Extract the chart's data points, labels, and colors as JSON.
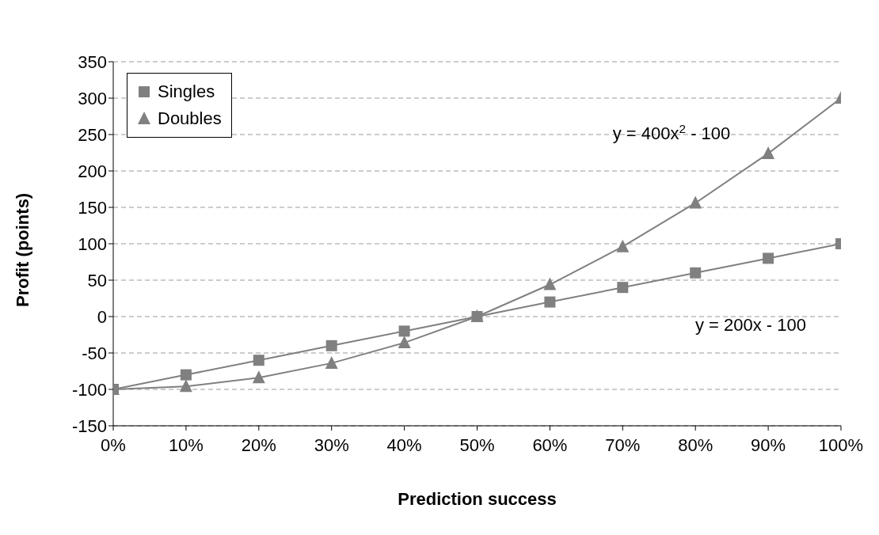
{
  "chart_data": {
    "type": "line",
    "xlabel": "Prediction success",
    "ylabel": "Profit (points)",
    "categories": [
      "0%",
      "10%",
      "20%",
      "30%",
      "40%",
      "50%",
      "60%",
      "70%",
      "80%",
      "90%",
      "100%"
    ],
    "series": [
      {
        "name": "Singles",
        "color": "#808080",
        "marker": "square",
        "values": [
          -100,
          -80,
          -60,
          -40,
          -20,
          0,
          20,
          40,
          60,
          80,
          100
        ]
      },
      {
        "name": "Doubles",
        "color": "#808080",
        "marker": "triangle",
        "values": [
          -100,
          -96,
          -84,
          -64,
          -36,
          0,
          44,
          96,
          156,
          224,
          300
        ]
      }
    ],
    "ylim": [
      -150,
      350
    ],
    "yticks": [
      -150,
      -100,
      -50,
      0,
      50,
      100,
      150,
      200,
      250,
      300,
      350
    ],
    "grid": "y",
    "legend": "top left",
    "annotations": [
      "y = 400x$^{2}$ - 100",
      "y = 200x - 100"
    ]
  }
}
